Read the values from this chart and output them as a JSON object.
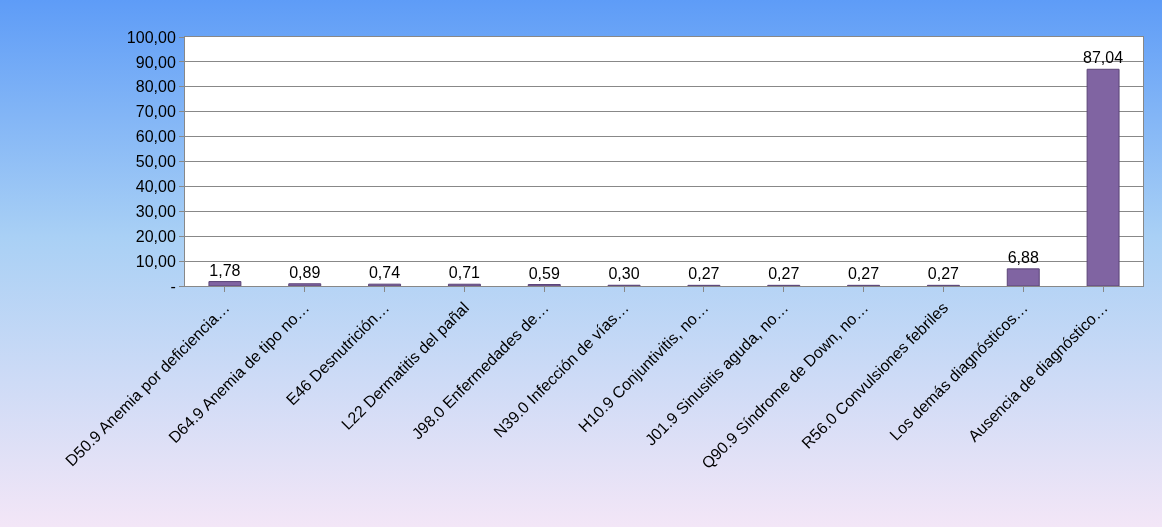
{
  "chart_data": {
    "type": "bar",
    "categories": [
      "D50.9 Anemia por deficiencia…",
      "D64.9 Anemia de tipo no…",
      "E46 Desnutrición…",
      "L22 Dermatitis del pañal",
      "J98.0 Enfermedades de…",
      "N39.0 Infección de vías…",
      "H10.9 Conjuntivitis, no…",
      "J01.9 Sinusitis aguda, no…",
      "Q90.9 Síndrome de Down, no…",
      "R56.0 Convulsiones febriles",
      "Los demás diagnósticos…",
      "Ausencia de diagnóstico…"
    ],
    "values": [
      1.78,
      0.89,
      0.74,
      0.71,
      0.59,
      0.3,
      0.27,
      0.27,
      0.27,
      0.27,
      6.88,
      87.04
    ],
    "value_labels": [
      "1,78",
      "0,89",
      "0,74",
      "0,71",
      "0,59",
      "0,30",
      "0,27",
      "0,27",
      "0,27",
      "0,27",
      "6,88",
      "87,04"
    ],
    "color": "#8064a2",
    "ylim": [
      0,
      100
    ],
    "yticks": [
      {
        "value": 0,
        "label": "-"
      },
      {
        "value": 10,
        "label": "10,00"
      },
      {
        "value": 20,
        "label": "20,00"
      },
      {
        "value": 30,
        "label": "30,00"
      },
      {
        "value": 40,
        "label": "40,00"
      },
      {
        "value": 50,
        "label": "50,00"
      },
      {
        "value": 60,
        "label": "60,00"
      },
      {
        "value": 70,
        "label": "70,00"
      },
      {
        "value": 80,
        "label": "80,00"
      },
      {
        "value": 90,
        "label": "90,00"
      },
      {
        "value": 100,
        "label": "100,00"
      }
    ],
    "grid": "y"
  }
}
